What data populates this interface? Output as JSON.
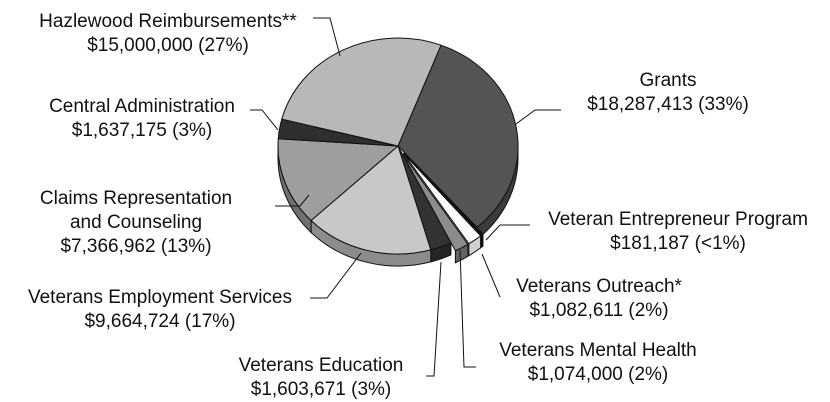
{
  "chart_data": {
    "type": "pie",
    "style": "3d",
    "title": "",
    "slices": [
      {
        "label": "Grants",
        "value": 18287413,
        "value_text": "$18,287,413 (33%)",
        "color": "#545454"
      },
      {
        "label": "Veteran Entrepreneur Program",
        "value": 181187,
        "value_text": "$181,187 (<1%)",
        "color": "#111111"
      },
      {
        "label": "Veterans Outreach*",
        "value": 1082611,
        "value_text": "$1,082,611 (2%)",
        "color": "#ffffff"
      },
      {
        "label": "Veterans Mental Health",
        "value": 1074000,
        "value_text": "$1,074,000 (2%)",
        "color": "#8c8c8c"
      },
      {
        "label": "Veterans Education",
        "value": 1603671,
        "value_text": "$1,603,671 (3%)",
        "color": "#333333"
      },
      {
        "label": "Veterans Employment Services",
        "value": 9664724,
        "value_text": "$9,664,724 (17%)",
        "color": "#c8c8c8"
      },
      {
        "label": "Claims Representation and Counseling",
        "value": 7366962,
        "value_text": "$7,366,962 (13%)",
        "color": "#9e9e9e"
      },
      {
        "label": "Central Administration",
        "value": 1637175,
        "value_text": "$1,637,175 (3%)",
        "color": "#2e2e2e"
      },
      {
        "label": "Hazlewood Reimbursements**",
        "value": 15000000,
        "value_text": "$15,000,000 (27%)",
        "color": "#b8b8b8"
      }
    ]
  }
}
